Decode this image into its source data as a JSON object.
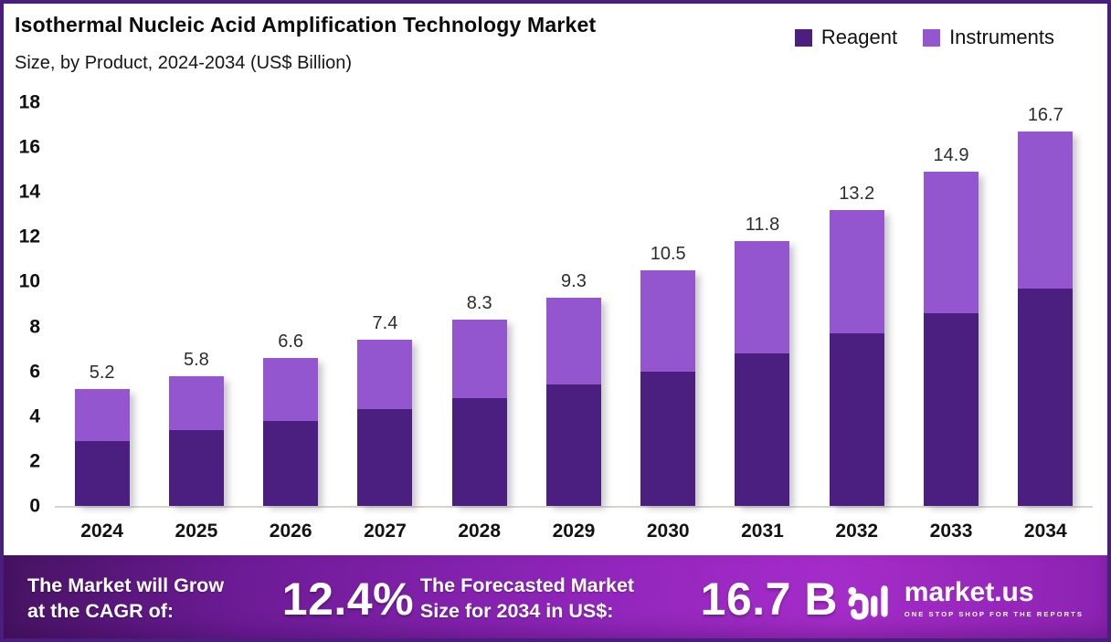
{
  "header": {
    "title": "Isothermal Nucleic Acid Amplification Technology Market",
    "subtitle": "Size, by Product, 2024-2034 (US$ Billion)"
  },
  "legend": [
    {
      "label": "Reagent",
      "color": "#4a1f80"
    },
    {
      "label": "Instruments",
      "color": "#9356ce"
    }
  ],
  "chart_data": {
    "type": "bar",
    "stacked": true,
    "title": "Isothermal Nucleic Acid Amplification Technology Market Size, by Product, 2024-2034 (US$ Billion)",
    "xlabel": "",
    "ylabel": "",
    "ylim": [
      0,
      18
    ],
    "yticks": [
      "0",
      "2",
      "4",
      "6",
      "8",
      "10",
      "12",
      "14",
      "16",
      "18"
    ],
    "grid": false,
    "legend_position": "top-right",
    "categories": [
      "2024",
      "2025",
      "2026",
      "2027",
      "2028",
      "2029",
      "2030",
      "2031",
      "2032",
      "2033",
      "2034"
    ],
    "series": [
      {
        "name": "Reagent",
        "color": "#4a1f80",
        "values": [
          2.9,
          3.4,
          3.8,
          4.3,
          4.8,
          5.4,
          6.0,
          6.8,
          7.7,
          8.6,
          9.7
        ]
      },
      {
        "name": "Instruments",
        "color": "#9356ce",
        "values": [
          2.3,
          2.4,
          2.8,
          3.1,
          3.5,
          3.9,
          4.5,
          5.0,
          5.5,
          6.3,
          7.0
        ]
      }
    ],
    "totals": [
      5.2,
      5.8,
      6.6,
      7.4,
      8.3,
      9.3,
      10.5,
      11.8,
      13.2,
      14.9,
      16.7
    ],
    "total_labels": [
      "5.2",
      "5.8",
      "6.6",
      "7.4",
      "8.3",
      "9.3",
      "10.5",
      "11.8",
      "13.2",
      "14.9",
      "16.7"
    ]
  },
  "footer": {
    "cagr_label": "The Market will Grow\nat the CAGR of:",
    "cagr_value": "12.4%",
    "forecast_label": "The Forecasted Market\nSize for 2034 in US$:",
    "forecast_value": "16.7 B",
    "brand_name": "market.us",
    "brand_tagline": "ONE STOP SHOP FOR THE REPORTS"
  },
  "colors": {
    "reagent": "#4a1f80",
    "instruments": "#9356ce",
    "border": "#4a1e7d",
    "banner_left": "#451361",
    "banner_right": "#a52cc9",
    "baseline": "#d6d3ce"
  }
}
